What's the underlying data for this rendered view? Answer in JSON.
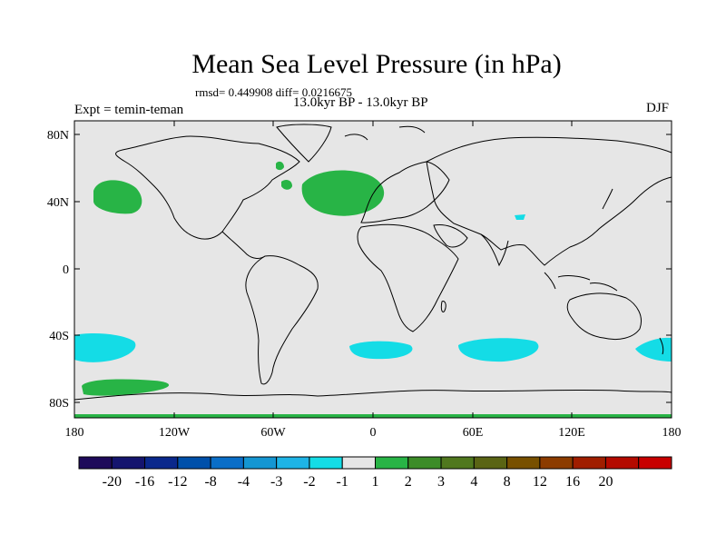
{
  "header": {
    "title": "Mean Sea Level Pressure (in hPa)",
    "stats": "rmsd= 0.449908 diff= 0.0216675",
    "period": "13.0kyr BP - 13.0kyr BP",
    "experiment": "Expt = temin-teman",
    "season": "DJF"
  },
  "axes": {
    "lat_ticks": [
      "80N",
      "40N",
      "0",
      "40S",
      "80S"
    ],
    "lon_ticks": [
      "180",
      "120W",
      "60W",
      "0",
      "60E",
      "120E",
      "180"
    ]
  },
  "colorbar": {
    "colors": [
      "#1e0a5a",
      "#14146e",
      "#0a288c",
      "#0050aa",
      "#0a6ec8",
      "#1496d2",
      "#1eb4e6",
      "#14dce6",
      "#e6e6e6",
      "#28b446",
      "#3c8c28",
      "#50781e",
      "#5a6414",
      "#785000",
      "#8c3c00",
      "#a01e00",
      "#b40a00",
      "#c80000"
    ],
    "labels": [
      "-20",
      "-16",
      "-12",
      "-8",
      "-4",
      "-3",
      "-2",
      "-1",
      "1",
      "2",
      "3",
      "4",
      "8",
      "12",
      "16",
      "20"
    ]
  },
  "colors": {
    "land_ocean": "#e6e6e6",
    "positive": "#28b446",
    "negative": "#14dce6"
  }
}
